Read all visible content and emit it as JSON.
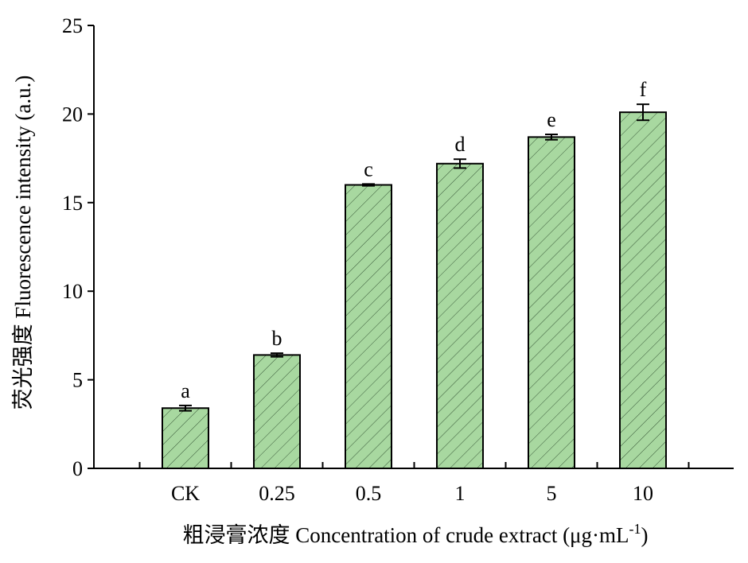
{
  "chart_data": {
    "type": "bar",
    "categories": [
      "CK",
      "0.25",
      "0.5",
      "1",
      "5",
      "10"
    ],
    "values": [
      3.4,
      6.4,
      16.0,
      17.2,
      18.7,
      20.1
    ],
    "errors": [
      0.15,
      0.1,
      0.05,
      0.25,
      0.15,
      0.45
    ],
    "significance_labels": [
      "a",
      "b",
      "c",
      "d",
      "e",
      "f"
    ],
    "title": "",
    "xlabel": "粗浸膏浓度 Concentration of crude extract (μg·mL",
    "xlabel_superscript": "-1",
    "xlabel_close": ")",
    "ylabel": "荧光强度 Fluorescence intensity (a.u.)",
    "ylim": [
      0,
      25
    ],
    "yticks": [
      0,
      5,
      10,
      15,
      20,
      25
    ],
    "grid": false,
    "legend": "none",
    "bar_fill_color": "#a8d8a0",
    "bar_stroke_color": "#000000",
    "hatch": "diagonal"
  }
}
